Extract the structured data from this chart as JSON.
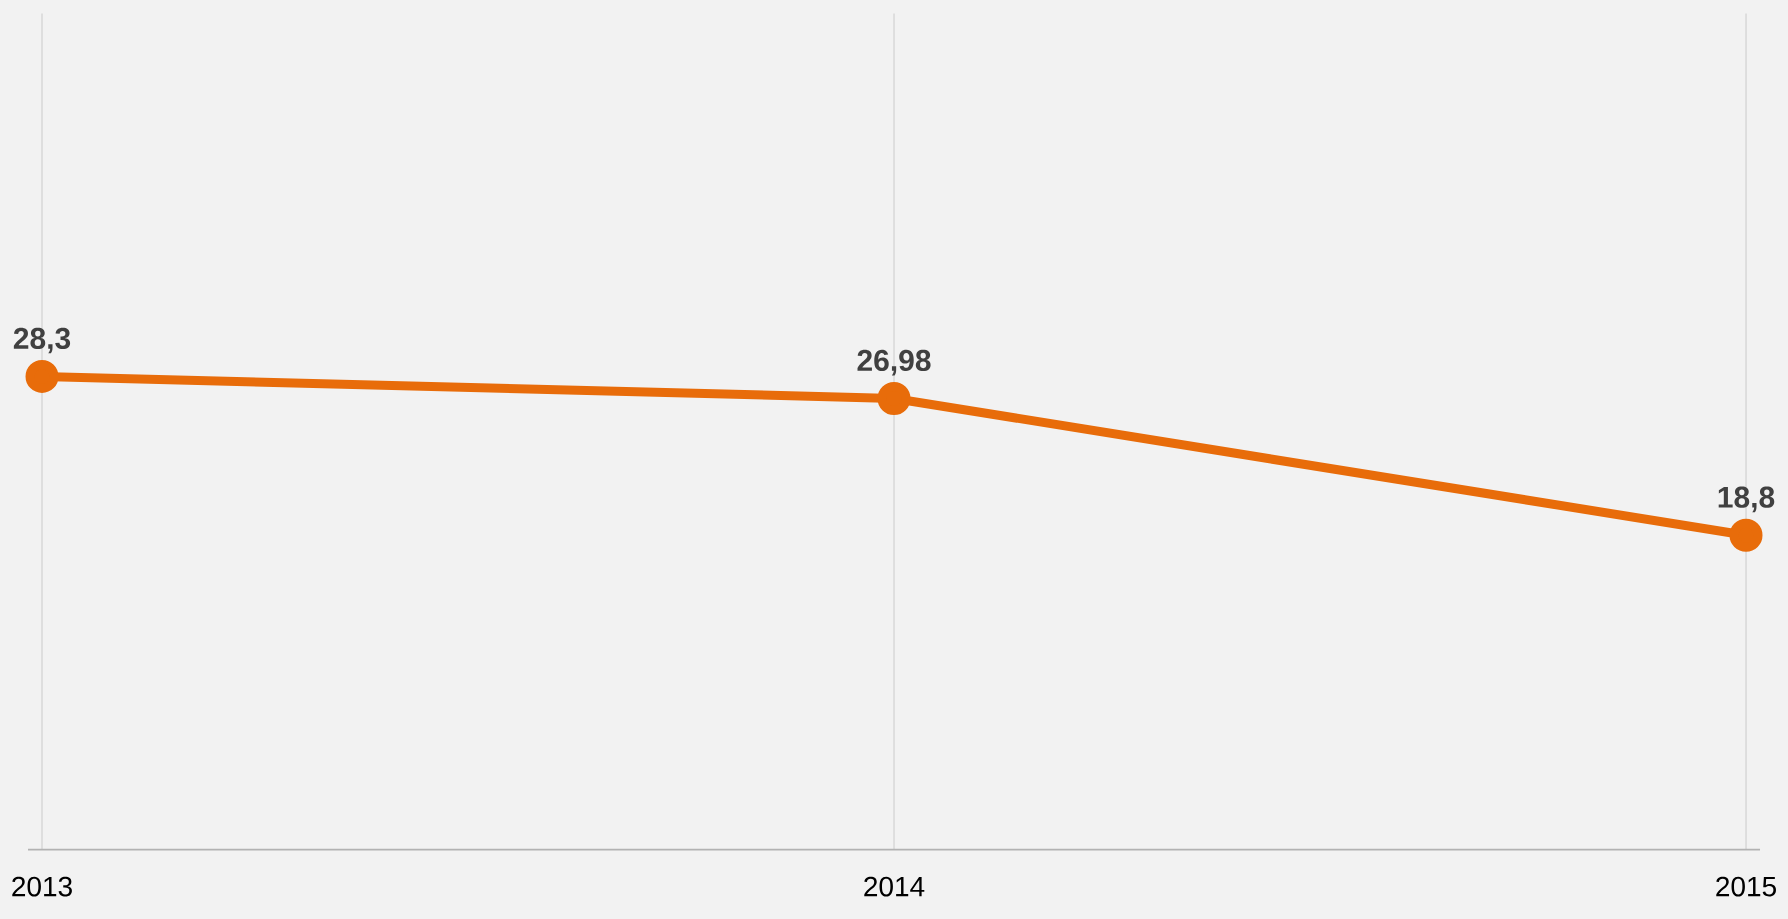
{
  "chart_data": {
    "type": "line",
    "categories": [
      "2013",
      "2014",
      "2015"
    ],
    "series": [
      {
        "color": "#e86c0a",
        "values": [
          28.3,
          26.98,
          18.8
        ],
        "value_labels": [
          "28,3",
          "26,98",
          "18,8"
        ]
      }
    ],
    "ylim": [
      0,
      50
    ],
    "grid": "x",
    "marker": "circle",
    "line_style": "solid",
    "tick_labels": "x"
  }
}
